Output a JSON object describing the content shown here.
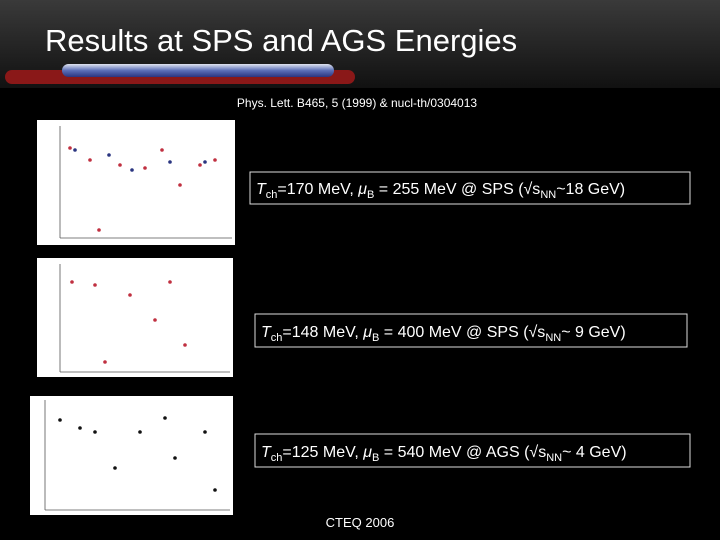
{
  "header": {
    "title": "Results at SPS and AGS Energies",
    "reference": "Phys. Lett. B465, 5 (1999) & nucl-th/0304013"
  },
  "results": [
    {
      "temperature": "T",
      "temperature_sub": "ch",
      "temperature_value": "=170 MeV, ",
      "mu": "μ",
      "mu_sub": "B",
      "mu_value": " = 255 MeV @ SPS (√s",
      "energy_sub": "NN",
      "energy_value": "~18 GeV)"
    },
    {
      "temperature": "T",
      "temperature_sub": "ch",
      "temperature_value": "=148 MeV, ",
      "mu": "μ",
      "mu_sub": "B",
      "mu_value": " = 400 MeV @ SPS (√s",
      "energy_sub": "NN",
      "energy_value": "~ 9 GeV)"
    },
    {
      "temperature": "T",
      "temperature_sub": "ch",
      "temperature_value": "=125 MeV, ",
      "mu": "μ",
      "mu_sub": "B",
      "mu_value": " = 540 MeV @ AGS (√s",
      "energy_sub": "NN",
      "energy_value": "~ 4 GeV)"
    }
  ],
  "footer": {
    "text": "CTEQ 2006"
  }
}
